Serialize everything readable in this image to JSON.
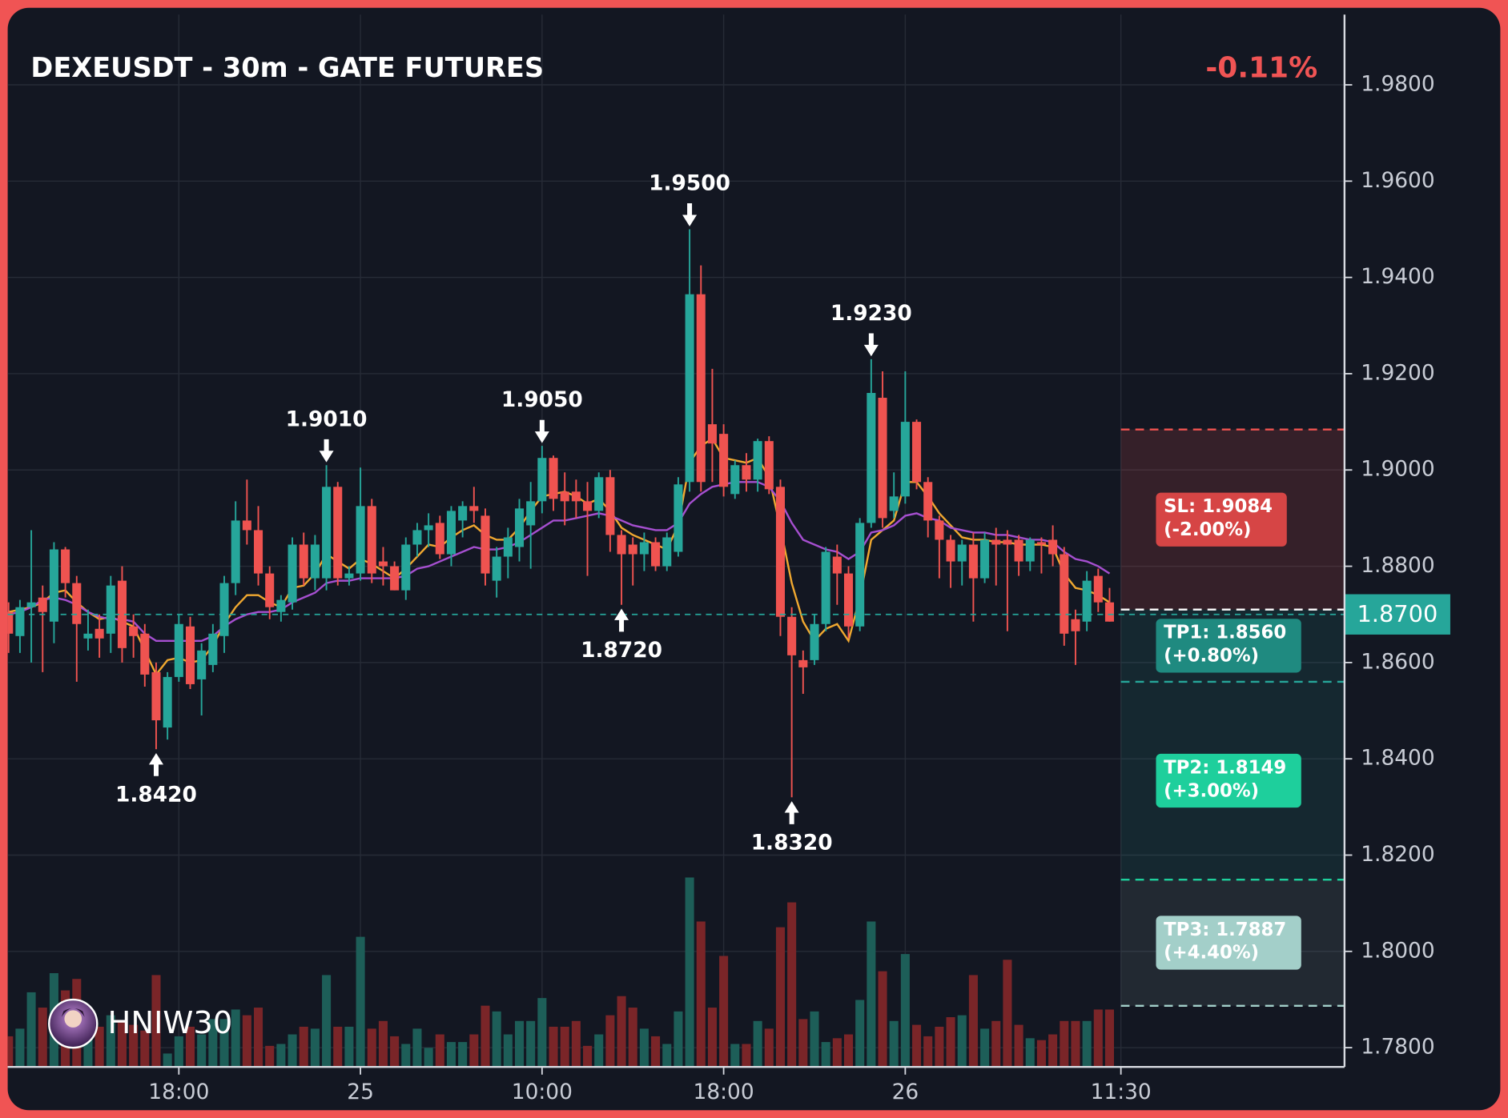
{
  "chart_data": {
    "type": "candlestick",
    "title": "DEXEUSDT - 30m - GATE FUTURES",
    "change": "-0.11%",
    "watermark": "HNIW30",
    "up_color": "#26a69a",
    "down_color": "#ef5350",
    "grid": true,
    "xlim": [
      -0.08,
      117.7
    ],
    "xticks": [
      {
        "value": 15,
        "label": "18:00"
      },
      {
        "value": 31,
        "label": "25"
      },
      {
        "value": 47,
        "label": "10:00"
      },
      {
        "value": 63,
        "label": "18:00"
      },
      {
        "value": 79,
        "label": "26"
      },
      {
        "value": 98,
        "label": "11:30"
      }
    ],
    "ylim": [
      1.776,
      1.9946
    ],
    "yticks": [
      {
        "value": 1.78,
        "label": "1.7800"
      },
      {
        "value": 1.8,
        "label": "1.8000"
      },
      {
        "value": 1.82,
        "label": "1.8200"
      },
      {
        "value": 1.84,
        "label": "1.8400"
      },
      {
        "value": 1.86,
        "label": "1.8600"
      },
      {
        "value": 1.88,
        "label": "1.8800"
      },
      {
        "value": 1.9,
        "label": "1.9000"
      },
      {
        "value": 1.92,
        "label": "1.9200"
      },
      {
        "value": 1.94,
        "label": "1.9400"
      },
      {
        "value": 1.96,
        "label": "1.9600"
      },
      {
        "value": 1.98,
        "label": "1.9800"
      }
    ],
    "open": [
      1.8705,
      1.8655,
      1.8715,
      1.8735,
      1.8685,
      1.8835,
      1.8765,
      1.865,
      1.867,
      1.866,
      1.877,
      1.8675,
      1.866,
      1.858,
      1.8465,
      1.857,
      1.8675,
      1.8565,
      1.8595,
      1.8655,
      1.8765,
      1.8895,
      1.8875,
      1.8785,
      1.8705,
      1.8725,
      1.8845,
      1.8775,
      1.8775,
      1.8965,
      1.8775,
      1.8785,
      1.8925,
      1.881,
      1.88,
      1.875,
      1.8845,
      1.8875,
      1.889,
      1.8825,
      1.8895,
      1.8925,
      1.8905,
      1.877,
      1.882,
      1.884,
      1.8885,
      1.8935,
      1.9025,
      1.8955,
      1.8955,
      1.8935,
      1.8915,
      1.8985,
      1.8865,
      1.8845,
      1.8825,
      1.885,
      1.88,
      1.883,
      1.8975,
      1.9365,
      1.9095,
      1.9075,
      1.895,
      1.901,
      1.898,
      1.906,
      1.8965,
      1.8695,
      1.8605,
      1.8605,
      1.868,
      1.882,
      1.8785,
      1.8675,
      1.889,
      1.915,
      1.8915,
      1.8945,
      1.91,
      1.8975,
      1.8895,
      1.8855,
      1.881,
      1.8845,
      1.8775,
      1.8855,
      1.8855,
      1.8855,
      1.881,
      1.885,
      1.8855,
      1.8825,
      1.869,
      1.8685,
      1.878,
      1.8725
    ],
    "high": [
      1.8725,
      1.873,
      1.8875,
      1.876,
      1.885,
      1.884,
      1.878,
      1.871,
      1.87,
      1.878,
      1.88,
      1.87,
      1.868,
      1.86,
      1.858,
      1.87,
      1.8695,
      1.864,
      1.868,
      1.878,
      1.8935,
      1.898,
      1.8925,
      1.88,
      1.874,
      1.886,
      1.887,
      1.8865,
      1.901,
      1.8975,
      1.88,
      1.9005,
      1.894,
      1.884,
      1.881,
      1.886,
      1.889,
      1.891,
      1.8905,
      1.8925,
      1.8935,
      1.8965,
      1.892,
      1.884,
      1.888,
      1.894,
      1.8975,
      1.905,
      1.903,
      1.8995,
      1.898,
      1.8975,
      1.8995,
      1.9,
      1.8875,
      1.886,
      1.887,
      1.886,
      1.887,
      1.8985,
      1.95,
      1.9425,
      1.921,
      1.9095,
      1.902,
      1.9035,
      1.9065,
      1.907,
      1.898,
      1.8715,
      1.8625,
      1.87,
      1.884,
      1.8845,
      1.88,
      1.89,
      1.923,
      1.9205,
      1.8995,
      1.9205,
      1.9105,
      1.8985,
      1.8905,
      1.8865,
      1.8855,
      1.887,
      1.887,
      1.888,
      1.8875,
      1.8865,
      1.886,
      1.886,
      1.8885,
      1.884,
      1.871,
      1.879,
      1.8795,
      1.8755
    ],
    "low": [
      1.862,
      1.862,
      1.86,
      1.858,
      1.864,
      1.8735,
      1.856,
      1.8625,
      1.861,
      1.862,
      1.86,
      1.861,
      1.855,
      1.842,
      1.844,
      1.856,
      1.8545,
      1.849,
      1.858,
      1.862,
      1.874,
      1.8845,
      1.876,
      1.869,
      1.8685,
      1.871,
      1.876,
      1.875,
      1.875,
      1.876,
      1.876,
      1.877,
      1.8765,
      1.876,
      1.875,
      1.873,
      1.882,
      1.884,
      1.8815,
      1.88,
      1.886,
      1.889,
      1.876,
      1.8735,
      1.8775,
      1.881,
      1.8795,
      1.891,
      1.8915,
      1.8885,
      1.89,
      1.878,
      1.89,
      1.883,
      1.872,
      1.876,
      1.879,
      1.879,
      1.879,
      1.882,
      1.8955,
      1.8955,
      1.8975,
      1.8945,
      1.894,
      1.8955,
      1.8955,
      1.895,
      1.8655,
      1.832,
      1.8535,
      1.8595,
      1.8665,
      1.872,
      1.865,
      1.8665,
      1.888,
      1.888,
      1.89,
      1.893,
      1.896,
      1.886,
      1.8775,
      1.8755,
      1.876,
      1.8685,
      1.8765,
      1.876,
      1.8665,
      1.878,
      1.879,
      1.8785,
      1.88,
      1.8635,
      1.8595,
      1.8665,
      1.8705,
      1.8685
    ],
    "close": [
      1.866,
      1.8715,
      1.8725,
      1.8705,
      1.8835,
      1.8765,
      1.868,
      1.866,
      1.865,
      1.876,
      1.863,
      1.8655,
      1.8575,
      1.848,
      1.857,
      1.868,
      1.8555,
      1.8625,
      1.866,
      1.8765,
      1.8895,
      1.8875,
      1.8785,
      1.8715,
      1.873,
      1.8845,
      1.8775,
      1.8845,
      1.8965,
      1.8775,
      1.8785,
      1.8925,
      1.8785,
      1.88,
      1.875,
      1.8845,
      1.8875,
      1.8885,
      1.8825,
      1.8915,
      1.8925,
      1.8915,
      1.8785,
      1.882,
      1.886,
      1.892,
      1.8935,
      1.9025,
      1.894,
      1.8935,
      1.8935,
      1.8915,
      1.8985,
      1.8865,
      1.8825,
      1.8825,
      1.885,
      1.88,
      1.886,
      1.897,
      1.9365,
      1.8975,
      1.9055,
      1.8965,
      1.901,
      1.898,
      1.906,
      1.896,
      1.8695,
      1.8615,
      1.859,
      1.868,
      1.883,
      1.8785,
      1.8675,
      1.889,
      1.916,
      1.89,
      1.8945,
      1.91,
      1.8975,
      1.8895,
      1.8855,
      1.881,
      1.8845,
      1.8775,
      1.8855,
      1.8845,
      1.8845,
      1.881,
      1.8855,
      1.8845,
      1.8825,
      1.866,
      1.8665,
      1.877,
      1.8725,
      1.8685
    ],
    "volume": [
      16,
      20,
      39,
      31,
      49,
      40,
      46,
      24,
      21,
      27,
      24,
      22,
      19,
      48,
      7,
      16,
      21,
      17,
      25,
      25,
      30,
      27,
      31,
      11,
      12,
      17,
      21,
      20,
      48,
      21,
      21,
      68,
      20,
      24,
      16,
      12,
      20,
      10,
      17,
      13,
      13,
      17,
      32,
      29,
      17,
      24,
      24,
      36,
      21,
      21,
      24,
      11,
      17,
      27,
      37,
      31,
      20,
      16,
      12,
      29,
      99,
      76,
      31,
      58,
      12,
      12,
      24,
      20,
      73,
      86,
      25,
      29,
      13,
      15,
      17,
      35,
      76,
      50,
      24,
      59,
      22,
      16,
      21,
      26,
      27,
      48,
      20,
      24,
      56,
      22,
      15,
      14,
      17,
      24,
      24,
      24,
      30,
      30
    ],
    "volume_lim": [
      0,
      550
    ],
    "volume_up_color": "#1d5e58",
    "volume_down_color": "#7a2528",
    "ma_lines": [
      {
        "color": "#f0a830",
        "values": [
          1.8705,
          1.871,
          1.8715,
          1.8725,
          1.8745,
          1.875,
          1.8725,
          1.8705,
          1.869,
          1.8695,
          1.8685,
          1.8675,
          1.8625,
          1.8575,
          1.8605,
          1.861,
          1.86,
          1.8605,
          1.8635,
          1.868,
          1.8715,
          1.874,
          1.874,
          1.8725,
          1.8715,
          1.8755,
          1.876,
          1.8785,
          1.8825,
          1.881,
          1.8795,
          1.8815,
          1.8805,
          1.879,
          1.8775,
          1.8795,
          1.882,
          1.8845,
          1.884,
          1.886,
          1.8875,
          1.8885,
          1.8865,
          1.8855,
          1.8855,
          1.888,
          1.8915,
          1.8945,
          1.895,
          1.8955,
          1.8945,
          1.893,
          1.894,
          1.8915,
          1.888,
          1.8865,
          1.8855,
          1.8845,
          1.8835,
          1.8885,
          1.9015,
          1.905,
          1.9065,
          1.9025,
          1.902,
          1.9015,
          1.9025,
          1.8985,
          1.888,
          1.8765,
          1.8685,
          1.8645,
          1.867,
          1.868,
          1.8645,
          1.8735,
          1.8855,
          1.8875,
          1.8895,
          1.8975,
          1.8975,
          1.8945,
          1.891,
          1.8885,
          1.886,
          1.8855,
          1.8855,
          1.885,
          1.885,
          1.8845,
          1.8845,
          1.8845,
          1.884,
          1.8785,
          1.8755,
          1.875,
          1.874,
          1.8725
        ]
      },
      {
        "color": "#a64fd0",
        "values": [
          1.87,
          1.8705,
          1.8715,
          1.873,
          1.8735,
          1.873,
          1.872,
          1.8705,
          1.8695,
          1.869,
          1.869,
          1.8685,
          1.866,
          1.8645,
          1.8645,
          1.8645,
          1.8645,
          1.8645,
          1.8655,
          1.8675,
          1.869,
          1.87,
          1.8705,
          1.8705,
          1.871,
          1.8725,
          1.8735,
          1.8745,
          1.8765,
          1.877,
          1.877,
          1.8775,
          1.8775,
          1.8775,
          1.8775,
          1.878,
          1.8795,
          1.88,
          1.881,
          1.882,
          1.883,
          1.884,
          1.8835,
          1.8835,
          1.884,
          1.885,
          1.8865,
          1.888,
          1.8895,
          1.8895,
          1.89,
          1.8905,
          1.891,
          1.8905,
          1.8895,
          1.8885,
          1.888,
          1.8875,
          1.8875,
          1.889,
          1.893,
          1.895,
          1.8965,
          1.897,
          1.8975,
          1.8975,
          1.8975,
          1.8965,
          1.8935,
          1.889,
          1.8855,
          1.8845,
          1.8835,
          1.883,
          1.8815,
          1.883,
          1.887,
          1.8875,
          1.8885,
          1.8905,
          1.891,
          1.89,
          1.8895,
          1.888,
          1.8875,
          1.887,
          1.887,
          1.8865,
          1.8865,
          1.886,
          1.8855,
          1.8855,
          1.885,
          1.883,
          1.8815,
          1.881,
          1.88,
          1.8785
        ]
      }
    ],
    "highs": [
      {
        "x": 28,
        "value": 1.901,
        "label": "1.9010"
      },
      {
        "x": 47,
        "value": 1.905,
        "label": "1.9050"
      },
      {
        "x": 60,
        "value": 1.95,
        "label": "1.9500"
      },
      {
        "x": 76,
        "value": 1.923,
        "label": "1.9230"
      }
    ],
    "lows": [
      {
        "x": 13,
        "value": 1.842,
        "label": "1.8420"
      },
      {
        "x": 54,
        "value": 1.872,
        "label": "1.8720"
      },
      {
        "x": 69,
        "value": 1.832,
        "label": "1.8320"
      }
    ],
    "current_price": {
      "value": 1.87,
      "label": "1.8700"
    },
    "trade_start_x": 98,
    "entry": 1.871,
    "stop_loss": {
      "value": 1.9084,
      "label": "SL: 1.9084",
      "change": "(-2.00%)",
      "color": "#ef5350"
    },
    "take_profits": [
      {
        "value": 1.856,
        "label": "TP1: 1.8560",
        "change": "(+0.80%)",
        "color": "#26a69a"
      },
      {
        "value": 1.8149,
        "label": "TP2: 1.8149",
        "change": "(+3.00%)",
        "color": "#1ecf9c"
      },
      {
        "value": 1.7887,
        "label": "TP3: 1.7887",
        "change": "(+4.40%)",
        "color": "#a3cfc9"
      }
    ]
  }
}
